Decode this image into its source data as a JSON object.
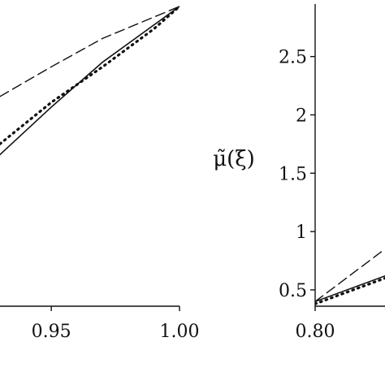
{
  "chart_data": [
    {
      "type": "line",
      "xlim": [
        0.93,
        1.0
      ],
      "ylim": [
        0.4,
        2.95
      ],
      "xticks": [
        {
          "value": 0.95,
          "label": "0.95"
        },
        {
          "value": 1.0,
          "label": "1.00"
        }
      ],
      "series": [
        {
          "style": "solid",
          "x": [
            0.93,
            0.95,
            0.97,
            1.0
          ],
          "y": [
            1.68,
            2.08,
            2.46,
            2.93
          ]
        },
        {
          "style": "dashed",
          "x": [
            0.93,
            0.95,
            0.97,
            1.0
          ],
          "y": [
            2.17,
            2.42,
            2.66,
            2.93
          ]
        },
        {
          "style": "dotted",
          "x": [
            0.93,
            0.95,
            0.97,
            0.99,
            1.0
          ],
          "y": [
            1.77,
            2.12,
            2.42,
            2.74,
            2.93
          ]
        }
      ]
    },
    {
      "type": "line",
      "xlim": [
        0.8,
        0.83
      ],
      "ylim": [
        0.36,
        2.95
      ],
      "ylabel": "μ̃(ξ)",
      "xticks": [
        {
          "value": 0.8,
          "label": "0.80"
        }
      ],
      "yticks": [
        {
          "value": 0.5,
          "label": "0.5"
        },
        {
          "value": 1.0,
          "label": "1"
        },
        {
          "value": 1.5,
          "label": "1.5"
        },
        {
          "value": 2.0,
          "label": "2"
        },
        {
          "value": 2.5,
          "label": "2.5"
        }
      ],
      "series": [
        {
          "style": "solid",
          "x": [
            0.8,
            0.83
          ],
          "y": [
            0.4,
            0.62
          ]
        },
        {
          "style": "dashed",
          "x": [
            0.8,
            0.83
          ],
          "y": [
            0.4,
            0.85
          ]
        },
        {
          "style": "dotted",
          "x": [
            0.8,
            0.83
          ],
          "y": [
            0.38,
            0.6
          ]
        }
      ]
    }
  ]
}
